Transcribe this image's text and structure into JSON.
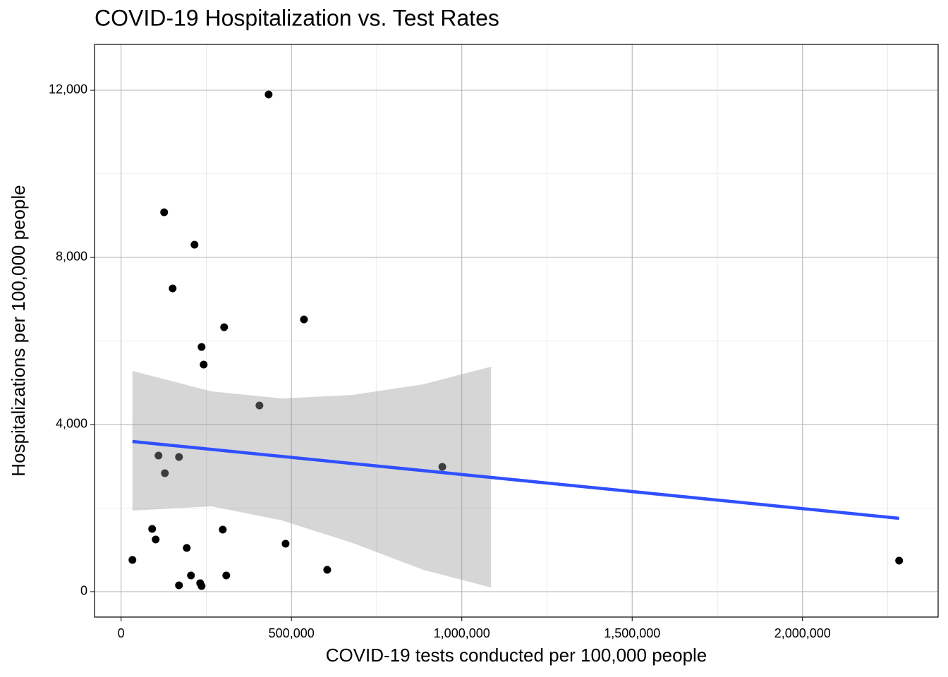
{
  "chart_data": {
    "type": "scatter",
    "title": "COVID-19 Hospitalization vs. Test Rates",
    "x_label": "COVID-19 tests conducted per 100,000 people",
    "y_label": "Hospitalizations per 100,000 people",
    "x": [
      433000,
      126400,
      215500,
      151300,
      302500,
      536700,
      236200,
      242400,
      406100,
      109800,
      169900,
      128500,
      942800,
      91200,
      298400,
      101500,
      192700,
      482800,
      33200,
      2283500,
      605000,
      205100,
      308700,
      232100,
      169900,
      236200
    ],
    "values": [
      11899,
      9080,
      8304,
      7257,
      6329,
      6515,
      5857,
      5435,
      4456,
      3257,
      3224,
      2835,
      2987,
      1502,
      1485,
      1249,
      1046,
      1148,
      759,
      743,
      523,
      388,
      388,
      203,
      152,
      135
    ],
    "color": "#000000",
    "trend": {
      "x": [
        33200,
        2283500
      ],
      "values": [
        3595,
        1755
      ],
      "color": "#3050ff"
    },
    "band": {
      "x": [
        33200,
        265200,
        472400,
        679600,
        886800,
        1085800
      ],
      "upper": [
        5283,
        4793,
        4624,
        4709,
        4962,
        5384
      ],
      "lower": [
        1941,
        2042,
        1705,
        1165,
        523,
        101
      ],
      "color": "#999999"
    },
    "xlim": [
      -78000,
      2398000
    ],
    "ylim": [
      -608,
      13097
    ],
    "xticks": [
      0,
      {
        "value": 500000,
        "label": "500,000"
      },
      {
        "value": 1000000,
        "label": "1,000,000"
      },
      {
        "value": 1500000,
        "label": "1,500,000"
      },
      {
        "value": 2000000,
        "label": "2,000,000"
      }
    ],
    "yticks": [
      0,
      {
        "value": 4000,
        "label": "4,000"
      },
      {
        "value": 8000,
        "label": "8,000"
      },
      {
        "value": 12000,
        "label": "12,000"
      }
    ],
    "x_minor_ticks": [
      250000,
      750000,
      1250000,
      1750000,
      2250000
    ],
    "y_minor_ticks": [
      2000,
      6000,
      10000
    ],
    "grid": true
  }
}
